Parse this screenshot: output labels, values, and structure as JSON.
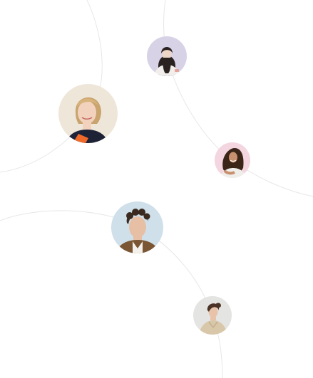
{
  "people": [
    {
      "id": "person-1",
      "background": "#d8d2e6",
      "hair": "#2a2220",
      "skin": "#eed6c6",
      "shirt": "#f1eeec"
    },
    {
      "id": "person-2",
      "background": "#efe6da",
      "hair": "#c9a46e",
      "skin": "#f2d2bd",
      "shirt": "#1d2236",
      "accent": "#ef6a2a"
    },
    {
      "id": "person-3",
      "background": "#f3d6df",
      "hair": "#3b2418",
      "skin": "#c8906e",
      "shirt": "#efeeea"
    },
    {
      "id": "person-4",
      "background": "#cfe0ea",
      "hair": "#3b2a1f",
      "skin": "#e7bfa4",
      "shirt": "#7a5634"
    },
    {
      "id": "person-5",
      "background": "#e4e4e2",
      "hair": "#4a3326",
      "skin": "#e8c3aa",
      "shirt": "#d9c7aa"
    }
  ],
  "line_color": "#e7e7e7"
}
